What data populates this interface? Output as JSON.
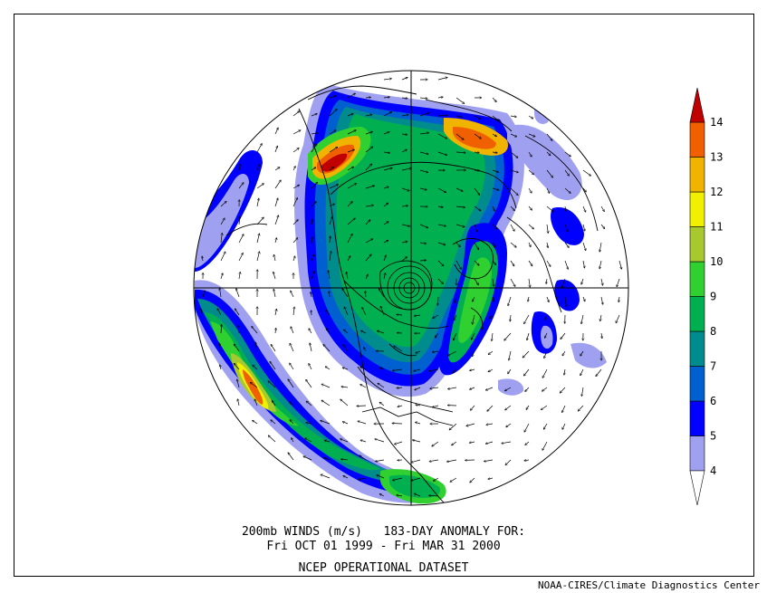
{
  "title": {
    "line1": "200mb WINDS (m/s)   183-DAY ANOMALY FOR:",
    "line2": "Fri OCT 01 1999 - Fri MAR 31 2000",
    "line3": "NCEP OPERATIONAL DATASET"
  },
  "credit": "NOAA-CIRES/Climate Diagnostics Center",
  "projection": "north-polar-stereographic",
  "colorbar": {
    "levels": [
      4,
      5,
      6,
      7,
      8,
      9,
      10,
      11,
      12,
      13,
      14
    ],
    "colors": [
      "#a0a0f0",
      "#0000ff",
      "#0060d0",
      "#008c8c",
      "#00b050",
      "#30d030",
      "#a8c830",
      "#f0f000",
      "#f0b400",
      "#f06000",
      "#c00000"
    ]
  },
  "colors": {
    "background": "#ffffff",
    "coastline": "#000000"
  }
}
